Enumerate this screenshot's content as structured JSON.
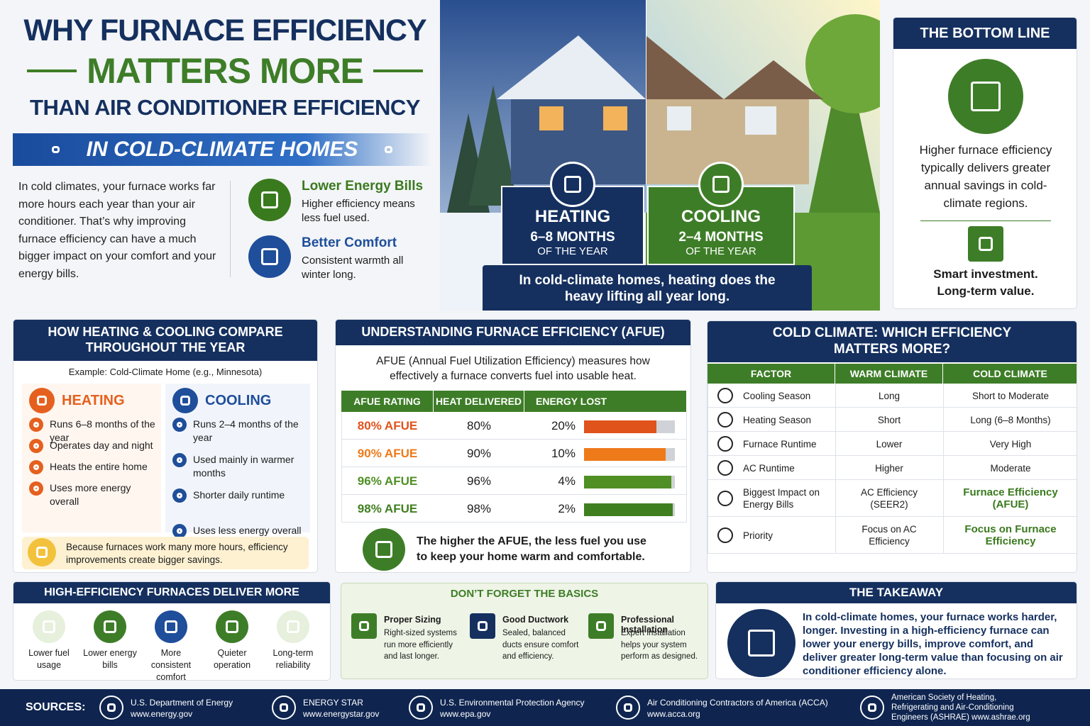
{
  "header": {
    "title_line1": "WHY FURNACE EFFICIENCY",
    "title_line2": "MATTERS MORE",
    "title_line3": "THAN AIR CONDITIONER EFFICIENCY",
    "banner": "IN COLD-CLIMATE HOMES"
  },
  "intro": "In cold climates, your furnace works far more hours each year than your air conditioner. That’s why improving furnace efficiency can have a much bigger impact on your comfort and your energy bills.",
  "benefits": [
    {
      "title": "Lower Energy Bills",
      "text": "Higher efficiency means less fuel used.",
      "color": "#3a7a1e"
    },
    {
      "title": "Better Comfort",
      "text": "Consistent warmth all winter long.",
      "color": "#1f4e9a"
    }
  ],
  "hero": {
    "heating": {
      "label": "HEATING",
      "duration": "6–8 MONTHS",
      "note": "OF THE YEAR"
    },
    "cooling": {
      "label": "COOLING",
      "duration": "2–4 MONTHS",
      "note": "OF THE YEAR"
    },
    "caption": "In cold-climate homes, heating does the heavy lifting all year long."
  },
  "bottom_line": {
    "title": "THE BOTTOM LINE",
    "text": "Higher furnace efficiency typically delivers greater annual savings in cold-climate regions.",
    "tagline": "Smart investment. Long-term value."
  },
  "compare": {
    "title": "HOW HEATING & COOLING COMPARE THROUGHOUT THE YEAR",
    "example": "Example: Cold-Climate Home (e.g., Minnesota)",
    "heating": {
      "label": "HEATING",
      "color": "#e5601e",
      "items": [
        "Runs 6–8 months of the year",
        "Operates day and night",
        "Heats the entire home",
        "Uses more energy overall"
      ]
    },
    "cooling": {
      "label": "COOLING",
      "color": "#1f4e9a",
      "items": [
        "Runs 2–4 months of the year",
        "Used mainly in warmer months",
        "Shorter daily runtime",
        "Uses less energy overall"
      ]
    },
    "note": "Because furnaces work many more hours, efficiency improvements create bigger savings."
  },
  "afue": {
    "title": "UNDERSTANDING FURNACE EFFICIENCY (AFUE)",
    "description": "AFUE (Annual Fuel Utilization Efficiency) measures how effectively a furnace converts fuel into usable heat.",
    "columns": [
      "AFUE RATING",
      "HEAT DELIVERED",
      "ENERGY LOST"
    ],
    "rows": [
      {
        "rating": "80% AFUE",
        "delivered": "80%",
        "lost": "20%",
        "color": "#e0531b"
      },
      {
        "rating": "90% AFUE",
        "delivered": "90%",
        "lost": "10%",
        "color": "#ee7a1a"
      },
      {
        "rating": "96% AFUE",
        "delivered": "96%",
        "lost": "4%",
        "color": "#4f8f24"
      },
      {
        "rating": "98% AFUE",
        "delivered": "98%",
        "lost": "2%",
        "color": "#3f7f1f"
      }
    ],
    "footer": "The higher the AFUE, the less fuel you use to keep your home warm and comfortable."
  },
  "climate": {
    "title": "COLD CLIMATE: WHICH EFFICIENCY MATTERS MORE?",
    "columns": [
      "FACTOR",
      "WARM CLIMATE",
      "COLD CLIMATE"
    ],
    "rows": [
      {
        "factor": "Cooling Season",
        "warm": "Long",
        "cold": "Short to Moderate"
      },
      {
        "factor": "Heating Season",
        "warm": "Short",
        "cold": "Long (6–8 Months)"
      },
      {
        "factor": "Furnace Runtime",
        "warm": "Lower",
        "cold": "Very High"
      },
      {
        "factor": "AC Runtime",
        "warm": "Higher",
        "cold": "Moderate"
      },
      {
        "factor": "Biggest Impact on Energy Bills",
        "warm": "AC Efficiency (SEER2)",
        "cold": "Furnace Efficiency (AFUE)",
        "cold_color": "#3a7a1e"
      },
      {
        "factor": "Priority",
        "warm": "Focus on AC Efficiency",
        "cold": "Focus on Furnace Efficiency",
        "cold_color": "#3a7a1e"
      }
    ]
  },
  "deliver": {
    "title": "HIGH-EFFICIENCY FURNACES DELIVER MORE",
    "items": [
      "Lower fuel usage",
      "Lower energy bills",
      "More consistent comfort",
      "Quieter operation",
      "Long-term reliability"
    ]
  },
  "basics": {
    "title": "DON’T FORGET THE BASICS",
    "items": [
      {
        "title": "Proper Sizing",
        "text": "Right-sized systems run more efficiently and last longer."
      },
      {
        "title": "Good Ductwork",
        "text": "Sealed, balanced ducts ensure comfort and efficiency."
      },
      {
        "title": "Professional Installation",
        "text": "Expert installation helps your system perform as designed."
      }
    ]
  },
  "takeaway": {
    "title": "THE TAKEAWAY",
    "text": "In cold-climate homes, your furnace works harder, longer. Investing in a high-efficiency furnace can lower your energy bills, improve comfort, and deliver greater long-term value than focusing on air conditioner efficiency alone."
  },
  "sources": {
    "label": "SOURCES:",
    "items": [
      {
        "name": "U.S. Department of Energy",
        "url": "www.energy.gov"
      },
      {
        "name": "ENERGY STAR",
        "url": "www.energystar.gov"
      },
      {
        "name": "U.S. Environmental Protection Agency",
        "url": "www.epa.gov"
      },
      {
        "name": "Air Conditioning Contractors of America (ACCA)",
        "url": "www.acca.org"
      },
      {
        "name": "American Society of Heating, Refrigerating and Air-Conditioning Engineers (ASHRAE)",
        "url": "www.ashrae.org"
      }
    ]
  }
}
